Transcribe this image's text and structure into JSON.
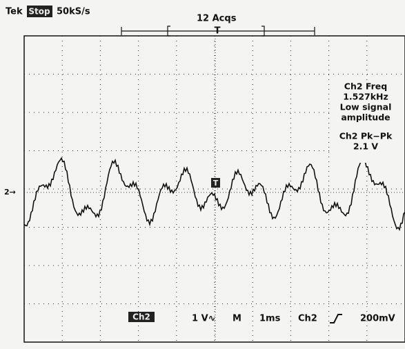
{
  "header": {
    "brand": "Tek",
    "state": "Stop",
    "sample_rate": "50kS/s",
    "acquisitions": "12 Acqs",
    "trigger_position": "T"
  },
  "readouts": [
    {
      "lines": [
        "Ch2 Freq",
        "1.527kHz",
        "Low signal",
        "amplitude"
      ]
    },
    {
      "lines": [
        "Ch2 Pk−Pk",
        "2.1 V"
      ]
    }
  ],
  "markers": {
    "channel_ground": "2→",
    "trigger": "T"
  },
  "footer": {
    "channel": "Ch2",
    "scale": "1 V∿",
    "mode": "M",
    "timebase": "1ms",
    "trigger_source": "Ch2",
    "trigger_level": "200mV"
  }
}
